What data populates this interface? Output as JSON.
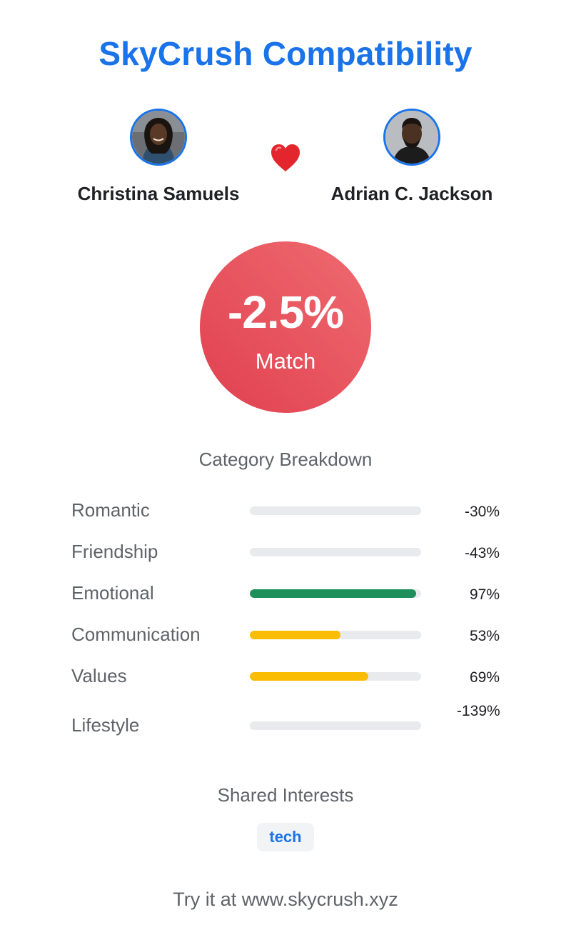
{
  "app": {
    "title": "SkyCrush Compatibility"
  },
  "people": [
    {
      "name": "Christina Samuels"
    },
    {
      "name": "Adrian C. Jackson"
    }
  ],
  "icons": {
    "heart": "heart-icon"
  },
  "score": {
    "value": "-2.5%",
    "label": "Match"
  },
  "breakdown": {
    "title": "Category Breakdown",
    "categories": [
      {
        "label": "Romantic",
        "value_text": "-30%",
        "fill_fraction": 0,
        "color": "#e8eaed"
      },
      {
        "label": "Friendship",
        "value_text": "-43%",
        "fill_fraction": 0,
        "color": "#e8eaed"
      },
      {
        "label": "Emotional",
        "value_text": "97%",
        "fill_fraction": 0.97,
        "color": "#1e8e5a"
      },
      {
        "label": "Communication",
        "value_text": "53%",
        "fill_fraction": 0.53,
        "color": "#fbbc04"
      },
      {
        "label": "Values",
        "value_text": "69%",
        "fill_fraction": 0.69,
        "color": "#fbbc04"
      },
      {
        "label": "Lifestyle",
        "value_text": "-139%",
        "fill_fraction": 0,
        "color": "#e8eaed"
      }
    ]
  },
  "shared_interests": {
    "title": "Shared Interests",
    "items": [
      "tech"
    ]
  },
  "footer": {
    "text": "Try it at www.skycrush.xyz"
  },
  "colors": {
    "accent": "#1a73e8",
    "score_gradient_start": "#ef6b70",
    "score_gradient_end": "#e0404f"
  }
}
